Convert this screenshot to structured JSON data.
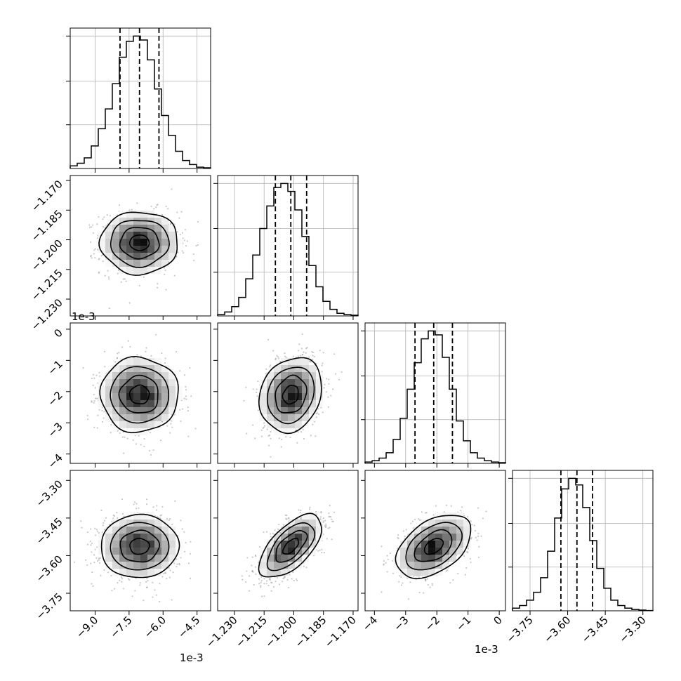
{
  "chart_data": {
    "type": "corner",
    "parameters": [
      {
        "offset_label": "1e-3",
        "ticks": [
          -9.0,
          -7.5,
          -6.0,
          -4.5
        ],
        "tick_labels": [
          "−9.0",
          "−7.5",
          "−6.0",
          "−4.5"
        ],
        "range": [
          -10.1,
          -3.9
        ],
        "median": -7.04,
        "quantiles": [
          -7.9,
          -7.04,
          -6.18
        ],
        "hist": [
          0.02,
          0.04,
          0.08,
          0.17,
          0.3,
          0.45,
          0.64,
          0.84,
          0.96,
          1.0,
          0.97,
          0.82,
          0.6,
          0.4,
          0.25,
          0.13,
          0.06,
          0.03,
          0.01,
          0.005
        ]
      },
      {
        "offset_label": "",
        "ticks": [
          -1.23,
          -1.215,
          -1.2,
          -1.185,
          -1.17
        ],
        "tick_labels": [
          "−1.230",
          "−1.215",
          "−1.200",
          "−1.185",
          "−1.170"
        ],
        "range": [
          -1.2385,
          -1.1675
        ],
        "median": -1.2015,
        "quantiles": [
          -1.2093,
          -1.2015,
          -1.1935
        ],
        "hist": [
          0.01,
          0.03,
          0.07,
          0.14,
          0.28,
          0.46,
          0.66,
          0.83,
          0.97,
          1.0,
          0.94,
          0.8,
          0.6,
          0.38,
          0.22,
          0.11,
          0.05,
          0.02,
          0.01,
          0.005
        ]
      },
      {
        "offset_label": "1e-3",
        "ticks": [
          -4,
          -3,
          -2,
          -1,
          0
        ],
        "tick_labels": [
          "−4",
          "−3",
          "−2",
          "−1",
          "0"
        ],
        "range": [
          -4.3,
          0.2
        ],
        "median": -2.1,
        "quantiles": [
          -2.7,
          -2.1,
          -1.5
        ],
        "hist": [
          0.01,
          0.02,
          0.04,
          0.08,
          0.18,
          0.34,
          0.56,
          0.76,
          0.94,
          1.0,
          0.97,
          0.8,
          0.56,
          0.32,
          0.17,
          0.08,
          0.04,
          0.02,
          0.01,
          0.005
        ]
      },
      {
        "offset_label": "",
        "ticks": [
          -3.75,
          -3.6,
          -3.45,
          -3.3
        ],
        "tick_labels": [
          "−3.75",
          "−3.60",
          "−3.45",
          "−3.30"
        ],
        "range": [
          -3.82,
          -3.26
        ],
        "median": -3.563,
        "quantiles": [
          -3.627,
          -3.563,
          -3.501
        ],
        "hist": [
          0.02,
          0.04,
          0.08,
          0.14,
          0.25,
          0.45,
          0.7,
          0.92,
          1.0,
          0.95,
          0.78,
          0.53,
          0.32,
          0.17,
          0.08,
          0.04,
          0.02,
          0.01,
          0.005,
          0.002
        ]
      }
    ],
    "correlations": [
      {
        "row": 1,
        "col": 0,
        "rho": 0.0
      },
      {
        "row": 2,
        "col": 0,
        "rho": 0.0
      },
      {
        "row": 2,
        "col": 1,
        "rho": 0.18
      },
      {
        "row": 3,
        "col": 0,
        "rho": 0.02
      },
      {
        "row": 3,
        "col": 1,
        "rho": 0.62
      },
      {
        "row": 3,
        "col": 2,
        "rho": 0.45
      }
    ],
    "histogram_grid": true,
    "contour_levels": 3,
    "quantile_line_style": "dashed",
    "colors": {
      "line": "#000000",
      "grid": "#b0b0b0",
      "scatter": "#9a9a9a",
      "density_dark": "#000000",
      "density_light": "#ffffff"
    }
  }
}
